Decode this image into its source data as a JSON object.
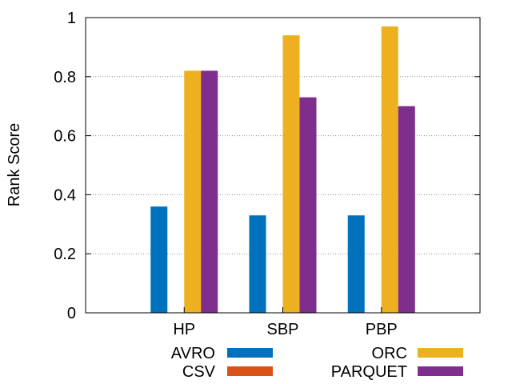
{
  "chart_data": {
    "type": "bar",
    "title": "",
    "xlabel": "",
    "ylabel": "Rank Score",
    "ylim": [
      0,
      1
    ],
    "yticks": [
      0,
      0.2,
      0.4,
      0.6,
      0.8,
      1
    ],
    "ytick_labels": [
      "0",
      "0.2",
      "0.4",
      "0.6",
      "0.8",
      "1"
    ],
    "grid": "horizontal dotted",
    "legend_position": "bottom",
    "categories": [
      "HP",
      "SBP",
      "PBP"
    ],
    "series": [
      {
        "name": "AVRO",
        "color": "#0072bd",
        "values": [
          0.36,
          0.33,
          0.33
        ]
      },
      {
        "name": "CSV",
        "color": "#d95319",
        "values": [
          0,
          0,
          0
        ]
      },
      {
        "name": "ORC",
        "color": "#edb120",
        "values": [
          0.82,
          0.94,
          0.97
        ]
      },
      {
        "name": "PARQUET",
        "color": "#7e2f8e",
        "values": [
          0.82,
          0.73,
          0.7
        ]
      }
    ]
  }
}
